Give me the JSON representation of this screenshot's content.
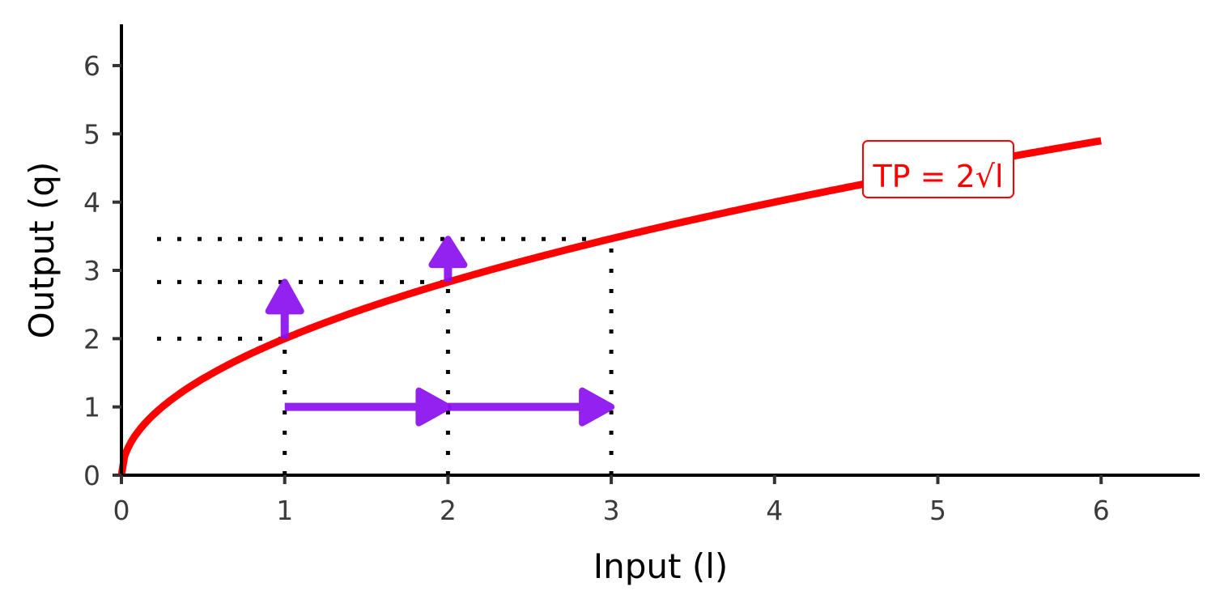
{
  "chart_data": {
    "type": "line",
    "xlabel": "Input (l)",
    "ylabel": "Output (q)",
    "xlim": [
      0,
      6.6
    ],
    "ylim": [
      0,
      6.6
    ],
    "x_ticks": [
      "0",
      "1",
      "2",
      "3",
      "4",
      "5",
      "6"
    ],
    "y_ticks": [
      "0",
      "1",
      "2",
      "3",
      "4",
      "5",
      "6"
    ],
    "grid": false,
    "series": [
      {
        "function": "q = 2*sqrt(l)",
        "x_range": [
          0,
          6
        ],
        "color": "#ff0000"
      }
    ],
    "annotation": {
      "text": "TP = 2√l",
      "x": 5.2,
      "y": 4.3,
      "color": "#ff0000"
    },
    "guide_points": [
      {
        "x": 1,
        "y": 2
      },
      {
        "x": 2,
        "y": 2.83
      },
      {
        "x": 3,
        "y": 3.46
      }
    ],
    "arrows": [
      {
        "from": [
          1,
          1
        ],
        "to": [
          2,
          1
        ]
      },
      {
        "from": [
          2,
          1
        ],
        "to": [
          3,
          1
        ]
      },
      {
        "from": [
          1,
          2
        ],
        "to": [
          1,
          2.83
        ]
      },
      {
        "from": [
          2,
          2.83
        ],
        "to": [
          2,
          3.46
        ]
      }
    ],
    "arrow_color": "#8a0fef"
  }
}
